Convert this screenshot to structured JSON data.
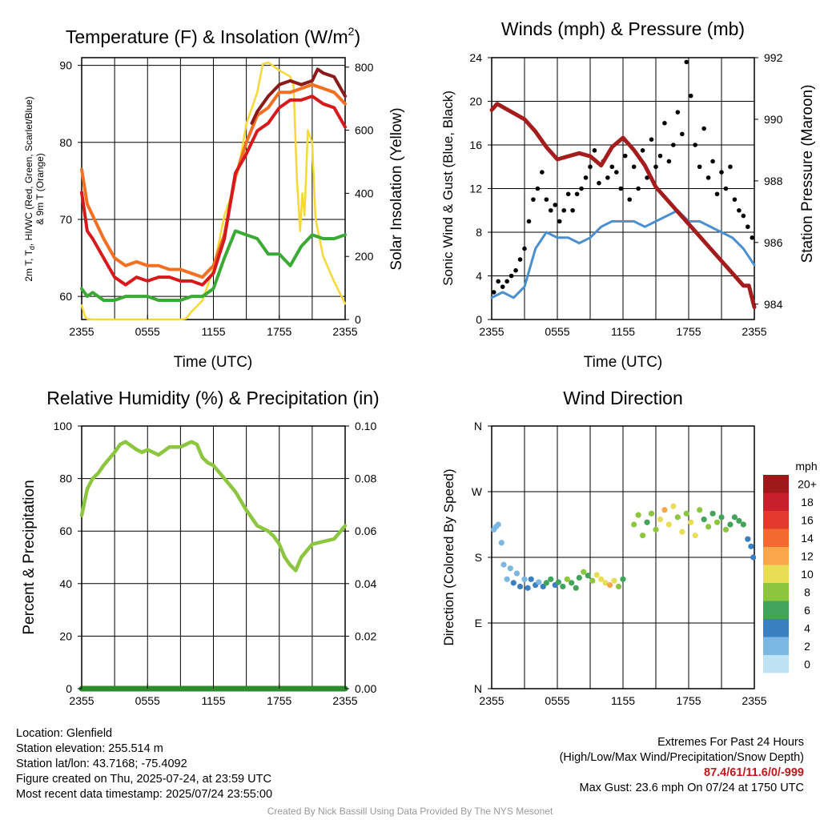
{
  "chart_data": [
    {
      "type": "line",
      "title": "Temperature (F) & Insolation (W/m²)",
      "xlabel": "Time (UTC)",
      "ylabel": "2m T, Td, HI/WC (Red, Green, Scarlet/Blue) & 9m T (Orange)",
      "y2label": "Solar Insolation (Yellow)",
      "xticks": [
        "2355",
        "0555",
        "1155",
        "1755",
        "2355"
      ],
      "xlim": [
        0,
        24
      ],
      "ylim": [
        57,
        91
      ],
      "y2lim": [
        0,
        830
      ],
      "yticks": [
        60,
        70,
        80,
        90
      ],
      "y2ticks": [
        0,
        200,
        400,
        600,
        800
      ],
      "grid": true,
      "series": [
        {
          "key": "t2m",
          "color": "#d7191c",
          "x": [
            0,
            0.5,
            1,
            2,
            3,
            4,
            5,
            6,
            7,
            8,
            9,
            10,
            11,
            12,
            13,
            14,
            15,
            16,
            17,
            18,
            19,
            20,
            21,
            22,
            23,
            24
          ],
          "y": [
            73.5,
            68.5,
            67.5,
            65,
            62.5,
            61.5,
            62.5,
            62,
            62.5,
            62.5,
            62,
            62,
            61.5,
            63,
            67.5,
            76,
            78.5,
            81.5,
            82.5,
            84.5,
            85.5,
            85.5,
            86,
            85,
            84.5,
            82
          ]
        },
        {
          "key": "t9m",
          "color": "#f37022",
          "x": [
            0,
            0.5,
            1,
            2,
            3,
            4,
            5,
            6,
            7,
            8,
            9,
            10,
            11,
            12,
            13,
            14,
            15,
            16,
            17,
            18,
            19,
            20,
            21,
            22,
            23,
            24
          ],
          "y": [
            76.5,
            72,
            70.5,
            67.5,
            65,
            64,
            64.5,
            64,
            64,
            63.5,
            63.5,
            63,
            62.5,
            64,
            68,
            75.5,
            80,
            83.5,
            84.5,
            86.5,
            86.5,
            87,
            87.5,
            87,
            86.5,
            85
          ]
        },
        {
          "key": "td",
          "color": "#3aaa35",
          "x": [
            0,
            0.5,
            1,
            2,
            3,
            4,
            5,
            6,
            7,
            8,
            9,
            10,
            11,
            12,
            13,
            14,
            15,
            16,
            17,
            18,
            19,
            20,
            21,
            22,
            23,
            24
          ],
          "y": [
            61,
            60,
            60.5,
            59.5,
            59.5,
            60,
            60,
            60,
            59.5,
            59.5,
            59.5,
            60,
            60,
            61,
            65,
            68.5,
            68,
            67.5,
            65.5,
            65.5,
            64,
            66.5,
            68,
            67.5,
            67.5,
            68
          ]
        },
        {
          "key": "hi",
          "color": "#8b1a1a",
          "x": [
            15.5,
            16,
            17,
            18,
            19,
            20,
            21,
            21.5,
            22,
            23,
            24
          ],
          "y": [
            82.5,
            84,
            86,
            87.5,
            88,
            87.5,
            88,
            89.5,
            89,
            88.5,
            86
          ]
        },
        {
          "key": "solar",
          "color": "#f5d936",
          "axis": "right",
          "x": [
            0,
            0.3,
            0.5,
            1,
            5,
            9,
            9.5,
            10,
            11,
            12,
            13,
            13.5,
            14,
            14.5,
            15,
            16,
            16.5,
            17,
            18,
            19,
            19.3,
            19.6,
            19.9,
            20.1,
            20.3,
            20.6,
            21,
            21.3,
            22,
            23,
            24
          ],
          "y": [
            45,
            10,
            2,
            0,
            0,
            0,
            3,
            25,
            60,
            160,
            330,
            380,
            450,
            520,
            620,
            720,
            810,
            815,
            790,
            770,
            740,
            450,
            280,
            400,
            330,
            600,
            560,
            320,
            200,
            120,
            50
          ]
        }
      ]
    },
    {
      "type": "line",
      "title": "Winds (mph) & Pressure (mb)",
      "xlabel": "Time (UTC)",
      "ylabel": "Sonic Wind & Gust (Blue, Black)",
      "y2label": "Station Pressure (Maroon)",
      "xticks": [
        "2355",
        "0555",
        "1155",
        "1755",
        "2355"
      ],
      "xlim": [
        0,
        24
      ],
      "ylim": [
        0,
        24
      ],
      "y2lim": [
        983.5,
        992
      ],
      "yticks": [
        0,
        4,
        8,
        12,
        16,
        20,
        24
      ],
      "y2ticks": [
        984,
        986,
        988,
        990,
        992
      ],
      "grid": true,
      "series": [
        {
          "key": "wind",
          "color": "#4a90d0",
          "x": [
            0,
            1,
            2,
            3,
            4,
            5,
            6,
            7,
            8,
            9,
            10,
            11,
            12,
            13,
            14,
            15,
            16,
            17,
            18,
            19,
            20,
            21,
            22,
            23,
            24
          ],
          "y": [
            2,
            2.5,
            2,
            3,
            6.5,
            8,
            7.5,
            7.5,
            7,
            7.5,
            8.5,
            9,
            9,
            9,
            8.5,
            9,
            9.5,
            10,
            9,
            9,
            8.5,
            8,
            7.5,
            6.5,
            5
          ]
        },
        {
          "key": "pressure",
          "color": "#a51c1c",
          "axis": "right",
          "x": [
            0,
            0.5,
            1,
            2,
            3,
            4,
            5,
            6,
            7,
            8,
            9,
            10,
            11,
            12,
            13,
            14,
            15,
            16,
            17,
            18,
            19,
            20,
            21,
            22,
            23,
            23.5,
            24
          ],
          "y": [
            990.3,
            990.5,
            990.4,
            990.2,
            990,
            989.6,
            989.1,
            988.7,
            988.8,
            988.9,
            988.8,
            988.5,
            989.1,
            989.4,
            989,
            988.5,
            987.8,
            987.4,
            987,
            986.6,
            986.2,
            985.8,
            985.4,
            985,
            984.6,
            984.6,
            983.9
          ]
        }
      ],
      "gust_points": {
        "x": [
          0.2,
          0.6,
          1.0,
          1.4,
          1.8,
          2.2,
          2.6,
          3.0,
          3.4,
          3.8,
          4.2,
          4.6,
          5.0,
          5.4,
          5.8,
          6.2,
          6.6,
          7.0,
          7.4,
          7.8,
          8.2,
          8.6,
          9.0,
          9.4,
          9.8,
          10.2,
          10.6,
          11.0,
          11.4,
          11.8,
          12.2,
          12.6,
          13.0,
          13.4,
          13.8,
          14.2,
          14.6,
          15.0,
          15.4,
          15.8,
          16.2,
          16.6,
          17.0,
          17.4,
          17.8,
          18.2,
          18.6,
          19.0,
          19.4,
          19.8,
          20.2,
          20.6,
          21.0,
          21.4,
          21.8,
          22.2,
          22.6,
          23.0,
          23.4,
          23.8
        ],
        "y": [
          2.5,
          3.5,
          3,
          3.5,
          4,
          4.5,
          5.5,
          6.5,
          9,
          11,
          12,
          13.5,
          11,
          10,
          10.5,
          9,
          10,
          11.5,
          10,
          11.5,
          12,
          13,
          14,
          15.5,
          12.5,
          14.5,
          13,
          14,
          13.5,
          12,
          15,
          11,
          14,
          12,
          15.5,
          13,
          16.5,
          14,
          15,
          18,
          14.5,
          16,
          19,
          17,
          23.6,
          20.5,
          16,
          14,
          17.5,
          13,
          14.5,
          11.5,
          13.5,
          12,
          14,
          11,
          10,
          9.5,
          8.5,
          7.5
        ]
      }
    },
    {
      "type": "line",
      "title": "Relative Humidity (%) & Precipitation (in)",
      "ylabel": "Percent & Precipitation",
      "xticks": [
        "2355",
        "0555",
        "1155",
        "1755",
        "2355"
      ],
      "xlim": [
        0,
        24
      ],
      "ylim": [
        0,
        100
      ],
      "y2lim": [
        0,
        0.1
      ],
      "yticks": [
        0,
        20,
        40,
        60,
        80,
        100
      ],
      "y2ticks": [
        "0.00",
        "0.02",
        "0.04",
        "0.06",
        "0.08",
        "0.10"
      ],
      "grid": true,
      "series": [
        {
          "key": "rh",
          "color": "#8cc63e",
          "x": [
            0,
            0.5,
            1,
            1.5,
            2,
            3,
            3.5,
            4,
            5,
            5.5,
            6,
            7,
            8,
            9,
            10,
            10.5,
            11,
            11.5,
            12,
            13,
            14,
            15,
            16,
            17,
            17.5,
            18,
            18.5,
            19,
            19.5,
            20,
            21,
            22,
            23,
            24
          ],
          "y": [
            66,
            76,
            80,
            82,
            85,
            90,
            93,
            94,
            91,
            90,
            91,
            89,
            92,
            92,
            94,
            93,
            88,
            86,
            85,
            80,
            75,
            68,
            62,
            60,
            58,
            55,
            50,
            47,
            45,
            50,
            55,
            56,
            57,
            62
          ]
        },
        {
          "key": "precip",
          "color": "#2e8b2e",
          "axis": "right",
          "x": [
            0,
            24
          ],
          "y": [
            0,
            0
          ]
        }
      ]
    },
    {
      "type": "scatter",
      "title": "Wind Direction",
      "ylabel": "Direction (Colored By Speed)",
      "xticks": [
        "2355",
        "0555",
        "1155",
        "1755",
        "2355"
      ],
      "yticks": [
        "N",
        "E",
        "S",
        "W",
        "N"
      ],
      "xlim": [
        0,
        24
      ],
      "ylim": [
        0,
        360
      ],
      "grid": true,
      "legend": {
        "title": "mph",
        "labels": [
          "20+",
          "18",
          "16",
          "14",
          "12",
          "10",
          "8",
          "6",
          "4",
          "2",
          "0"
        ],
        "colors": [
          "#9e1a1a",
          "#c8202a",
          "#e23a2c",
          "#f26a2e",
          "#f9a74a",
          "#e8dd55",
          "#8cc63e",
          "#42a35a",
          "#3a7fc0",
          "#7ab7e2",
          "#bde3f5"
        ]
      },
      "points": [
        [
          0.2,
          218,
          1
        ],
        [
          0.4,
          222,
          2
        ],
        [
          0.6,
          225,
          1
        ],
        [
          0.9,
          200,
          2
        ],
        [
          1.1,
          170,
          2
        ],
        [
          1.4,
          150,
          1
        ],
        [
          1.7,
          165,
          2
        ],
        [
          2,
          145,
          3
        ],
        [
          2.3,
          158,
          2
        ],
        [
          2.6,
          140,
          3
        ],
        [
          3,
          150,
          2
        ],
        [
          3.3,
          138,
          4
        ],
        [
          3.6,
          150,
          3
        ],
        [
          4,
          142,
          4
        ],
        [
          4.3,
          146,
          2
        ],
        [
          4.7,
          140,
          4
        ],
        [
          5,
          145,
          5
        ],
        [
          5.4,
          150,
          6
        ],
        [
          5.8,
          142,
          4
        ],
        [
          6.1,
          146,
          5
        ],
        [
          6.5,
          140,
          6
        ],
        [
          6.9,
          150,
          7
        ],
        [
          7.3,
          145,
          5
        ],
        [
          7.7,
          138,
          6
        ],
        [
          8,
          152,
          6
        ],
        [
          8.4,
          160,
          7
        ],
        [
          8.8,
          155,
          6
        ],
        [
          9.2,
          148,
          7
        ],
        [
          9.6,
          156,
          9
        ],
        [
          10,
          150,
          10
        ],
        [
          10.4,
          145,
          9
        ],
        [
          10.8,
          142,
          11
        ],
        [
          11.2,
          148,
          9
        ],
        [
          11.6,
          140,
          8
        ],
        [
          12,
          150,
          6
        ],
        [
          13,
          225,
          7
        ],
        [
          13.4,
          238,
          8
        ],
        [
          13.8,
          210,
          7
        ],
        [
          14.2,
          228,
          6
        ],
        [
          14.6,
          240,
          8
        ],
        [
          15,
          218,
          7
        ],
        [
          15.4,
          232,
          10
        ],
        [
          15.8,
          245,
          11
        ],
        [
          16.2,
          225,
          9
        ],
        [
          16.6,
          250,
          10
        ],
        [
          17,
          235,
          8
        ],
        [
          17.4,
          215,
          10
        ],
        [
          17.8,
          240,
          7
        ],
        [
          18.2,
          228,
          9
        ],
        [
          18.6,
          210,
          10
        ],
        [
          19,
          245,
          7
        ],
        [
          19.4,
          232,
          6
        ],
        [
          19.8,
          222,
          8
        ],
        [
          20.2,
          240,
          6
        ],
        [
          20.6,
          228,
          7
        ],
        [
          21,
          235,
          6
        ],
        [
          21.4,
          218,
          7
        ],
        [
          21.8,
          225,
          6
        ],
        [
          22.2,
          235,
          6
        ],
        [
          22.6,
          230,
          5
        ],
        [
          23,
          225,
          5
        ],
        [
          23.4,
          205,
          4
        ],
        [
          23.7,
          195,
          4
        ],
        [
          23.9,
          180,
          3
        ]
      ]
    }
  ],
  "info": {
    "location": "Location: Glenfield",
    "elevation": "Station elevation: 255.514 m",
    "latlon": "Station lat/lon: 43.7168; -75.4092",
    "created": "Figure created on Thu, 2025-07-24, at 23:59 UTC",
    "recent": "Most recent data timestamp: 2025/07/24 23:55:00",
    "extremes_title": "Extremes For Past 24 Hours",
    "extremes_subtitle": "(High/Low/Max Wind/Precipitation/Snow Depth)",
    "extremes_values": "87.4/61/11.6/0/-999",
    "max_gust": "Max Gust: 23.6 mph On 07/24 at 1750 UTC",
    "credit": "Created By Nick Bassill Using Data Provided By The NYS Mesonet"
  }
}
